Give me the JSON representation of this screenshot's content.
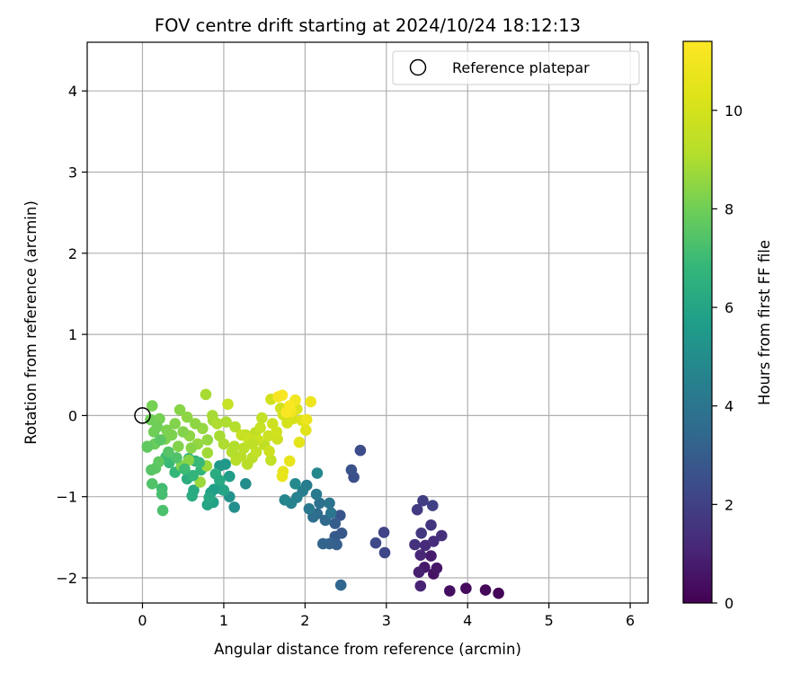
{
  "chart_data": {
    "type": "scatter",
    "title": "FOV centre drift starting at 2024/10/24 18:12:13",
    "xlabel": "Angular distance from reference (arcmin)",
    "ylabel": "Rotation from reference (arcmin)",
    "xlim": [
      -0.68,
      6.22
    ],
    "ylim": [
      -2.31,
      4.6
    ],
    "xticks": [
      0,
      1,
      2,
      3,
      4,
      5,
      6
    ],
    "yticks": [
      -2,
      -1,
      0,
      1,
      2,
      3,
      4
    ],
    "grid": true,
    "legend": {
      "placement": "top-right",
      "entries": [
        "Reference platepar"
      ]
    },
    "reference_point": {
      "x": 0,
      "y": 0
    },
    "colorbar": {
      "label": "Hours from first FF file",
      "colormap": "viridis",
      "range": [
        0,
        11.4
      ],
      "ticks": [
        0,
        2,
        4,
        6,
        8,
        10
      ]
    },
    "points": [
      [
        4.38,
        -2.19,
        0.1
      ],
      [
        4.22,
        -2.15,
        0.2
      ],
      [
        3.98,
        -2.13,
        0.3
      ],
      [
        3.78,
        -2.16,
        0.4
      ],
      [
        3.58,
        -1.95,
        0.5
      ],
      [
        3.62,
        -1.88,
        0.6
      ],
      [
        3.47,
        -1.87,
        0.7
      ],
      [
        3.55,
        -1.73,
        0.8
      ],
      [
        3.4,
        -1.93,
        0.9
      ],
      [
        3.42,
        -2.1,
        1.0
      ],
      [
        3.42,
        -1.72,
        1.1
      ],
      [
        3.48,
        -1.6,
        1.2
      ],
      [
        3.58,
        -1.55,
        1.3
      ],
      [
        3.68,
        -1.48,
        1.4
      ],
      [
        3.35,
        -1.59,
        1.5
      ],
      [
        3.55,
        -1.35,
        1.6
      ],
      [
        3.43,
        -1.45,
        1.7
      ],
      [
        3.38,
        -1.16,
        1.8
      ],
      [
        3.45,
        -1.05,
        1.9
      ],
      [
        3.57,
        -1.11,
        2.0
      ],
      [
        2.97,
        -1.44,
        2.1
      ],
      [
        2.98,
        -1.69,
        2.2
      ],
      [
        2.87,
        -1.57,
        2.3
      ],
      [
        2.68,
        -0.43,
        2.4
      ],
      [
        2.6,
        -0.76,
        2.5
      ],
      [
        2.57,
        -0.67,
        2.6
      ],
      [
        2.43,
        -1.23,
        2.7
      ],
      [
        2.45,
        -1.45,
        2.8
      ],
      [
        2.37,
        -1.49,
        2.9
      ],
      [
        2.37,
        -1.33,
        3.0
      ],
      [
        2.39,
        -1.59,
        3.1
      ],
      [
        2.3,
        -1.58,
        3.2
      ],
      [
        2.22,
        -1.58,
        3.3
      ],
      [
        2.44,
        -2.09,
        3.4
      ],
      [
        2.25,
        -1.29,
        3.5
      ],
      [
        2.15,
        -1.21,
        3.6
      ],
      [
        2.1,
        -1.25,
        3.7
      ],
      [
        2.18,
        -1.08,
        3.8
      ],
      [
        2.3,
        -1.08,
        3.9
      ],
      [
        2.32,
        -1.2,
        4.0
      ],
      [
        2.05,
        -1.15,
        4.1
      ],
      [
        2.14,
        -0.97,
        4.2
      ],
      [
        2.02,
        -0.86,
        4.3
      ],
      [
        1.97,
        -0.93,
        4.4
      ],
      [
        1.9,
        -1.01,
        4.5
      ],
      [
        1.83,
        -1.08,
        4.6
      ],
      [
        1.75,
        -1.04,
        4.7
      ],
      [
        2.15,
        -0.71,
        4.8
      ],
      [
        1.88,
        -0.84,
        4.9
      ],
      [
        1.27,
        -0.84,
        5.0
      ],
      [
        1.13,
        -1.13,
        5.1
      ],
      [
        1.07,
        -1.0,
        5.2
      ],
      [
        0.98,
        -0.91,
        5.3
      ],
      [
        0.95,
        -0.62,
        5.4
      ],
      [
        1.02,
        -0.6,
        5.5
      ],
      [
        1.07,
        -0.75,
        5.6
      ],
      [
        0.88,
        -0.91,
        5.7
      ],
      [
        0.84,
        -0.95,
        5.8
      ],
      [
        0.87,
        -1.07,
        5.9
      ],
      [
        0.8,
        -1.1,
        6.0
      ],
      [
        0.82,
        -1.01,
        6.1
      ],
      [
        0.63,
        -0.92,
        6.2
      ],
      [
        0.61,
        -0.99,
        6.3
      ],
      [
        0.55,
        -0.78,
        6.4
      ],
      [
        0.57,
        -0.53,
        6.5
      ],
      [
        0.65,
        -0.56,
        6.6
      ],
      [
        0.72,
        -0.67,
        6.7
      ],
      [
        0.4,
        -0.7,
        6.8
      ],
      [
        0.33,
        -0.58,
        6.9
      ],
      [
        0.29,
        -0.51,
        7.0
      ],
      [
        0.24,
        -0.9,
        7.1
      ],
      [
        0.24,
        -0.97,
        7.2
      ],
      [
        0.25,
        -1.17,
        7.3
      ],
      [
        0.12,
        -0.84,
        7.4
      ],
      [
        0.11,
        -0.67,
        7.5
      ],
      [
        0.16,
        -0.65,
        7.6
      ],
      [
        0.2,
        -0.57,
        7.7
      ],
      [
        0.06,
        -0.39,
        7.8
      ],
      [
        0.15,
        -0.35,
        7.9
      ],
      [
        0.14,
        -0.2,
        8.0
      ],
      [
        0.1,
        -0.05,
        8.0
      ],
      [
        0.12,
        0.12,
        8.1
      ],
      [
        0.21,
        -0.04,
        8.1
      ],
      [
        0.28,
        -0.29,
        8.2
      ],
      [
        0.36,
        -0.24,
        8.2
      ],
      [
        0.44,
        -0.38,
        8.3
      ],
      [
        0.48,
        -0.62,
        8.3
      ],
      [
        0.57,
        -0.55,
        8.4
      ],
      [
        0.46,
        0.07,
        8.4
      ],
      [
        0.55,
        -0.02,
        8.5
      ],
      [
        0.58,
        -0.25,
        8.5
      ],
      [
        0.68,
        -0.35,
        8.6
      ],
      [
        0.74,
        -0.16,
        8.6
      ],
      [
        0.79,
        -0.62,
        8.7
      ],
      [
        0.71,
        -0.82,
        8.7
      ],
      [
        0.8,
        -0.46,
        8.8
      ],
      [
        0.87,
        -0.06,
        8.8
      ],
      [
        0.78,
        0.26,
        8.9
      ],
      [
        0.86,
        0.0,
        8.9
      ],
      [
        0.92,
        -0.1,
        9.0
      ],
      [
        1.03,
        -0.08,
        9.0
      ],
      [
        1.14,
        -0.14,
        9.1
      ],
      [
        1.13,
        -0.38,
        9.1
      ],
      [
        1.21,
        -0.5,
        9.2
      ],
      [
        1.29,
        -0.6,
        9.2
      ],
      [
        1.35,
        -0.52,
        9.3
      ],
      [
        1.27,
        -0.24,
        9.3
      ],
      [
        1.39,
        -0.21,
        9.4
      ],
      [
        1.5,
        -0.36,
        9.4
      ],
      [
        1.58,
        -0.55,
        9.5
      ],
      [
        1.47,
        -0.03,
        9.5
      ],
      [
        1.05,
        0.14,
        9.6
      ],
      [
        1.22,
        -0.24,
        9.6
      ],
      [
        1.3,
        -0.28,
        9.7
      ],
      [
        1.42,
        -0.3,
        9.7
      ],
      [
        1.56,
        -0.44,
        9.8
      ],
      [
        1.66,
        -0.29,
        9.8
      ],
      [
        1.58,
        0.2,
        9.9
      ],
      [
        1.7,
        0.09,
        9.9
      ],
      [
        1.73,
        0.01,
        10.0
      ],
      [
        1.78,
        -0.09,
        10.0
      ],
      [
        1.85,
        -0.04,
        10.1
      ],
      [
        1.9,
        0.08,
        10.2
      ],
      [
        1.96,
        -0.06,
        10.3
      ],
      [
        2.01,
        -0.18,
        10.4
      ],
      [
        1.93,
        -0.33,
        10.5
      ],
      [
        1.81,
        -0.56,
        10.6
      ],
      [
        1.73,
        -0.69,
        10.6
      ],
      [
        1.72,
        -0.75,
        10.7
      ],
      [
        2.02,
        -0.05,
        10.8
      ],
      [
        2.07,
        0.17,
        10.9
      ],
      [
        1.83,
        0.05,
        11.0
      ],
      [
        1.88,
        0.19,
        11.0
      ],
      [
        1.67,
        0.23,
        11.1
      ],
      [
        1.72,
        0.25,
        11.2
      ],
      [
        1.81,
        0.12,
        11.3
      ],
      [
        1.77,
        0.04,
        11.3
      ],
      [
        0.06,
        -0.38,
        7.7
      ],
      [
        0.18,
        -0.14,
        8.0
      ],
      [
        0.3,
        -0.18,
        8.2
      ],
      [
        0.22,
        -0.3,
        7.6
      ],
      [
        0.32,
        -0.45,
        7.5
      ],
      [
        0.42,
        -0.52,
        7.4
      ],
      [
        0.52,
        -0.66,
        7.0
      ],
      [
        0.62,
        -0.74,
        6.7
      ],
      [
        0.7,
        -0.58,
        6.9
      ],
      [
        0.9,
        -0.72,
        6.4
      ],
      [
        0.95,
        -0.8,
        6.2
      ],
      [
        1.0,
        -0.92,
        6.0
      ],
      [
        0.4,
        -0.1,
        8.3
      ],
      [
        0.5,
        -0.2,
        8.3
      ],
      [
        0.6,
        -0.4,
        8.4
      ],
      [
        0.65,
        -0.1,
        8.5
      ],
      [
        0.8,
        -0.3,
        8.6
      ],
      [
        0.95,
        -0.25,
        8.9
      ],
      [
        1.0,
        -0.35,
        9.0
      ],
      [
        1.1,
        -0.45,
        9.1
      ],
      [
        1.15,
        -0.55,
        9.2
      ],
      [
        1.25,
        -0.4,
        9.3
      ],
      [
        1.35,
        -0.35,
        9.4
      ],
      [
        1.4,
        -0.45,
        9.5
      ],
      [
        1.45,
        -0.15,
        9.6
      ],
      [
        1.55,
        -0.25,
        9.7
      ],
      [
        1.6,
        -0.1,
        9.8
      ],
      [
        1.65,
        -0.2,
        9.9
      ]
    ]
  }
}
